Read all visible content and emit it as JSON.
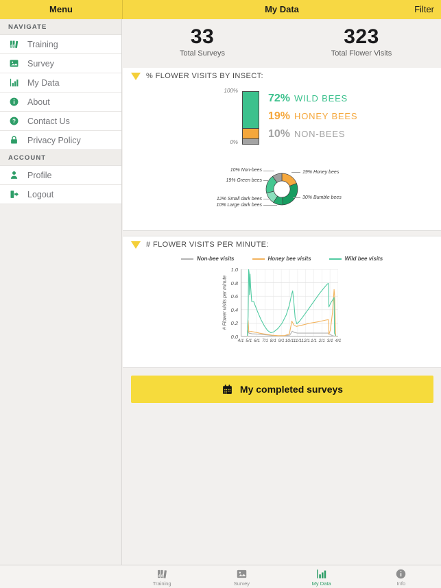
{
  "header": {
    "menu_title": "Menu",
    "page_title": "My Data",
    "filter_label": "Filter"
  },
  "sidebar": {
    "sections": [
      {
        "label": "NAVIGATE"
      },
      {
        "label": "ACCOUNT"
      }
    ],
    "nav_items": [
      {
        "label": "Training"
      },
      {
        "label": "Survey"
      },
      {
        "label": "My Data"
      },
      {
        "label": "About"
      },
      {
        "label": "Contact Us"
      },
      {
        "label": "Privacy Policy"
      }
    ],
    "account_items": [
      {
        "label": "Profile"
      },
      {
        "label": "Logout"
      }
    ]
  },
  "stats": {
    "surveys": {
      "value": "33",
      "label": "Total Surveys"
    },
    "visits": {
      "value": "323",
      "label": "Total Flower Visits"
    }
  },
  "button": {
    "label": "My completed surveys"
  },
  "tabbar": {
    "items": [
      {
        "label": "Training"
      },
      {
        "label": "Survey"
      },
      {
        "label": "My Data"
      },
      {
        "label": "Info"
      }
    ]
  },
  "colors": {
    "accent_yellow": "#F7D843",
    "brand_green": "#2E9E68",
    "orange": "#F5A73B",
    "gray": "#9B9B9B"
  },
  "chart_data": [
    {
      "type": "bar",
      "variant": "stacked-percent",
      "title": "% FLOWER VISITS BY INSECT:",
      "axis_top": "100%",
      "axis_bottom": "0%",
      "segments": [
        {
          "name": "WILD BEES",
          "pct": 72,
          "pct_label": "72%",
          "color": "#3CC18D"
        },
        {
          "name": "HONEY BEES",
          "pct": 19,
          "pct_label": "19%",
          "color": "#F5A73B"
        },
        {
          "name": "NON-BEES",
          "pct": 10,
          "pct_label": "10%",
          "color": "#A3A3A3"
        }
      ]
    },
    {
      "type": "pie",
      "variant": "donut",
      "segments": [
        {
          "label": "19% Honey bees",
          "value": 19,
          "color": "#F6A93F"
        },
        {
          "label": "30% Bumble bees",
          "value": 30,
          "color": "#189D61"
        },
        {
          "label": "10% Large dark bees",
          "value": 10,
          "color": "#23AA6E"
        },
        {
          "label": "12% Small dark bees",
          "value": 12,
          "color": "#8ADFBC"
        },
        {
          "label": "19% Green bees",
          "value": 19,
          "color": "#45C791"
        },
        {
          "label": "10% Non-bees",
          "value": 10,
          "color": "#A0A0A0"
        }
      ]
    },
    {
      "type": "line",
      "title": "# FLOWER VISITS PER MINUTE:",
      "ylabel": "# Flower visits per minute",
      "ylim": [
        0,
        1
      ],
      "xrange": [
        0,
        12
      ],
      "yticks": [
        "0.0",
        "0.2",
        "0.4",
        "0.6",
        "0.8",
        "1.0"
      ],
      "xticks": [
        "4/1",
        "5/1",
        "6/1",
        "7/1",
        "8/1",
        "9/1",
        "10/1",
        "11/1",
        "12/1",
        "1/1",
        "2/1",
        "3/1",
        "4/1"
      ],
      "grid": true,
      "legend_position": "top",
      "series": [
        {
          "name": "Non-bee visits",
          "color": "#B3B3B3",
          "points": [
            [
              0.8,
              0.005
            ],
            [
              0.88,
              0.09
            ],
            [
              1.0,
              0.05
            ],
            [
              1.4,
              0.04
            ],
            [
              2.2,
              0.035
            ],
            [
              3.0,
              0.025
            ],
            [
              3.8,
              0.015
            ],
            [
              4.6,
              0.01
            ],
            [
              5.5,
              0.012
            ],
            [
              6.05,
              0.02
            ],
            [
              6.35,
              0.08
            ],
            [
              6.6,
              0.06
            ],
            [
              7.0,
              0.05
            ],
            [
              8.0,
              0.05
            ],
            [
              9.0,
              0.05
            ],
            [
              10.0,
              0.05
            ],
            [
              10.75,
              0.05
            ],
            [
              11.0,
              0.03
            ],
            [
              11.3,
              0.012
            ],
            [
              11.6,
              0.003
            ],
            [
              11.75,
              0
            ]
          ]
        },
        {
          "name": "Honey bee visits",
          "color": "#F3B45F",
          "points": [
            [
              0.8,
              0.005
            ],
            [
              0.9,
              0.24
            ],
            [
              1.0,
              0.07
            ],
            [
              1.3,
              0.075
            ],
            [
              1.7,
              0.065
            ],
            [
              2.3,
              0.05
            ],
            [
              3.0,
              0.035
            ],
            [
              3.8,
              0.02
            ],
            [
              4.6,
              0.012
            ],
            [
              5.4,
              0.012
            ],
            [
              6.0,
              0.04
            ],
            [
              6.3,
              0.23
            ],
            [
              6.55,
              0.17
            ],
            [
              6.85,
              0.15
            ],
            [
              7.6,
              0.17
            ],
            [
              8.6,
              0.2
            ],
            [
              9.6,
              0.22
            ],
            [
              10.5,
              0.245
            ],
            [
              10.8,
              0.25
            ],
            [
              10.86,
              0.03
            ],
            [
              11.05,
              0.1
            ],
            [
              11.3,
              0.35
            ],
            [
              11.5,
              0.7
            ],
            [
              11.56,
              0.62
            ],
            [
              11.7,
              0.02
            ],
            [
              11.75,
              0
            ]
          ]
        },
        {
          "name": "Wild bee visits",
          "color": "#52CBA2",
          "points": [
            [
              0.8,
              0.01
            ],
            [
              0.9,
              0.3
            ],
            [
              0.97,
              1.0
            ],
            [
              1.03,
              0.95
            ],
            [
              1.08,
              0.62
            ],
            [
              1.15,
              0.93
            ],
            [
              1.22,
              0.75
            ],
            [
              1.35,
              0.52
            ],
            [
              1.6,
              0.52
            ],
            [
              1.75,
              0.47
            ],
            [
              2.1,
              0.36
            ],
            [
              2.5,
              0.25
            ],
            [
              2.9,
              0.16
            ],
            [
              3.3,
              0.09
            ],
            [
              3.7,
              0.055
            ],
            [
              4.1,
              0.07
            ],
            [
              4.6,
              0.12
            ],
            [
              5.1,
              0.2
            ],
            [
              5.6,
              0.32
            ],
            [
              6.0,
              0.47
            ],
            [
              6.25,
              0.62
            ],
            [
              6.4,
              0.68
            ],
            [
              6.55,
              0.5
            ],
            [
              6.7,
              0.28
            ],
            [
              6.9,
              0.19
            ],
            [
              7.2,
              0.22
            ],
            [
              7.7,
              0.3
            ],
            [
              8.3,
              0.4
            ],
            [
              9.0,
              0.52
            ],
            [
              9.7,
              0.64
            ],
            [
              10.3,
              0.73
            ],
            [
              10.7,
              0.785
            ],
            [
              10.82,
              0.79
            ],
            [
              10.86,
              0.44
            ],
            [
              11.1,
              0.5
            ],
            [
              11.35,
              0.55
            ],
            [
              11.5,
              0.58
            ],
            [
              11.55,
              0.05
            ],
            [
              11.7,
              0.01
            ]
          ]
        }
      ]
    }
  ]
}
